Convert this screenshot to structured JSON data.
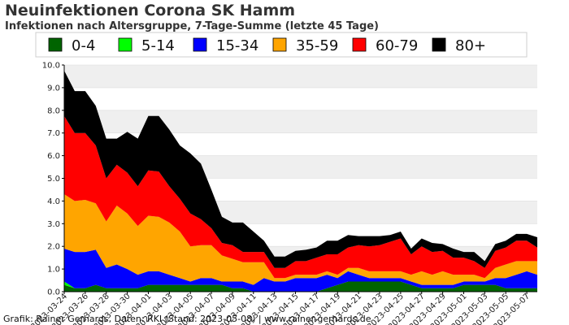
{
  "title": "Neuinfektionen Corona SK Hamm",
  "subtitle": "Infektionen nach Altersgruppe, 7-Tage-Summe (letzte 45 Tage)",
  "credit": "Grafik: Rainer Gerhards, Daten: RKI (Stand: 2023-05-08) | www.rainer-gerhards.de",
  "chart_data": {
    "type": "area",
    "stacked": true,
    "legend_position": "top",
    "grid": true,
    "ylim": [
      0,
      10
    ],
    "yticks": [
      "0.0",
      "1.0",
      "2.0",
      "3.0",
      "4.0",
      "5.0",
      "6.0",
      "7.0",
      "8.0",
      "9.0",
      "10.0"
    ],
    "x": [
      "2023-03-24",
      "2023-03-25",
      "2023-03-26",
      "2023-03-27",
      "2023-03-28",
      "2023-03-29",
      "2023-03-30",
      "2023-03-31",
      "2023-04-01",
      "2023-04-02",
      "2023-04-03",
      "2023-04-04",
      "2023-04-05",
      "2023-04-06",
      "2023-04-07",
      "2023-04-08",
      "2023-04-09",
      "2023-04-10",
      "2023-04-11",
      "2023-04-12",
      "2023-04-13",
      "2023-04-14",
      "2023-04-15",
      "2023-04-16",
      "2023-04-17",
      "2023-04-18",
      "2023-04-19",
      "2023-04-20",
      "2023-04-21",
      "2023-04-22",
      "2023-04-23",
      "2023-04-24",
      "2023-04-25",
      "2023-04-26",
      "2023-04-27",
      "2023-04-28",
      "2023-04-29",
      "2023-04-30",
      "2023-05-01",
      "2023-05-02",
      "2023-05-03",
      "2023-05-04",
      "2023-05-05",
      "2023-05-06",
      "2023-05-07",
      "2023-05-08"
    ],
    "xtick_labels": [
      "2023-03-24",
      "2023-03-26",
      "2023-03-28",
      "2023-03-30",
      "2023-04-01",
      "2023-04-03",
      "2023-04-05",
      "2023-04-07",
      "2023-04-09",
      "2023-04-11",
      "2023-04-13",
      "2023-04-15",
      "2023-04-17",
      "2023-04-19",
      "2023-04-21",
      "2023-04-23",
      "2023-04-25",
      "2023-04-27",
      "2023-04-29",
      "2023-05-01",
      "2023-05-03",
      "2023-05-05",
      "2023-05-07"
    ],
    "series": [
      {
        "name": "0-4",
        "color": "#006400",
        "values": [
          0.3,
          0.15,
          0.15,
          0.3,
          0.15,
          0.15,
          0.15,
          0.15,
          0.3,
          0.3,
          0.3,
          0.3,
          0.3,
          0.3,
          0.3,
          0.3,
          0.15,
          0.15,
          0,
          0,
          0,
          0,
          0,
          0,
          0,
          0.15,
          0.3,
          0.45,
          0.45,
          0.45,
          0.45,
          0.45,
          0.45,
          0.3,
          0.15,
          0.15,
          0.15,
          0.15,
          0.3,
          0.3,
          0.3,
          0.3,
          0.15,
          0.15,
          0.15,
          0.15
        ]
      },
      {
        "name": "5-14",
        "color": "#00ff00",
        "values": [
          0.15,
          0,
          0,
          0,
          0,
          0,
          0,
          0,
          0,
          0,
          0,
          0,
          0,
          0,
          0,
          0,
          0,
          0,
          0,
          0,
          0,
          0,
          0,
          0,
          0,
          0,
          0,
          0,
          0,
          0,
          0,
          0,
          0,
          0,
          0,
          0,
          0,
          0,
          0,
          0,
          0,
          0,
          0,
          0,
          0,
          0
        ]
      },
      {
        "name": "15-34",
        "color": "#0000ff",
        "values": [
          1.45,
          1.6,
          1.6,
          1.55,
          0.9,
          1.05,
          0.85,
          0.6,
          0.6,
          0.6,
          0.45,
          0.3,
          0.15,
          0.3,
          0.3,
          0.15,
          0.3,
          0.3,
          0.3,
          0.6,
          0.45,
          0.45,
          0.6,
          0.6,
          0.6,
          0.6,
          0.3,
          0.45,
          0.3,
          0.15,
          0.15,
          0.15,
          0.15,
          0.15,
          0.15,
          0.15,
          0.15,
          0.15,
          0.15,
          0.15,
          0.15,
          0.3,
          0.45,
          0.6,
          0.75,
          0.6
        ]
      },
      {
        "name": "35-59",
        "color": "#ffa500",
        "values": [
          2.4,
          2.25,
          2.3,
          2.05,
          2.05,
          2.6,
          2.45,
          2.15,
          2.45,
          2.4,
          2.3,
          2.05,
          1.55,
          1.45,
          1.45,
          1.15,
          1.0,
          0.85,
          1.0,
          0.7,
          0.15,
          0.15,
          0.15,
          0.15,
          0.15,
          0.15,
          0.15,
          0.15,
          0.3,
          0.3,
          0.3,
          0.3,
          0.3,
          0.3,
          0.6,
          0.45,
          0.6,
          0.45,
          0.3,
          0.3,
          0.15,
          0.45,
          0.6,
          0.6,
          0.45,
          0.6
        ]
      },
      {
        "name": "60-79",
        "color": "#ff0000",
        "values": [
          3.45,
          3.0,
          2.95,
          2.55,
          1.9,
          1.8,
          1.8,
          1.75,
          2.0,
          2.0,
          1.6,
          1.45,
          1.45,
          1.15,
          0.75,
          0.55,
          0.6,
          0.45,
          0.45,
          0.45,
          0.45,
          0.45,
          0.6,
          0.6,
          0.75,
          0.75,
          0.9,
          0.9,
          1.0,
          1.1,
          1.15,
          1.3,
          1.45,
          0.9,
          1.1,
          1.0,
          0.9,
          0.75,
          0.75,
          0.6,
          0.45,
          0.75,
          0.75,
          0.9,
          0.9,
          0.6
        ]
      },
      {
        "name": "80+",
        "color": "#000000",
        "values": [
          2.0,
          1.85,
          1.85,
          1.75,
          1.75,
          1.15,
          1.8,
          2.1,
          2.4,
          2.45,
          2.5,
          2.35,
          2.65,
          2.45,
          1.7,
          1.15,
          1.0,
          1.3,
          0.9,
          0.5,
          0.5,
          0.5,
          0.45,
          0.5,
          0.45,
          0.6,
          0.6,
          0.55,
          0.4,
          0.45,
          0.4,
          0.3,
          0.3,
          0.25,
          0.35,
          0.4,
          0.3,
          0.4,
          0.25,
          0.4,
          0.3,
          0.3,
          0.3,
          0.3,
          0.3,
          0.45
        ]
      }
    ]
  }
}
